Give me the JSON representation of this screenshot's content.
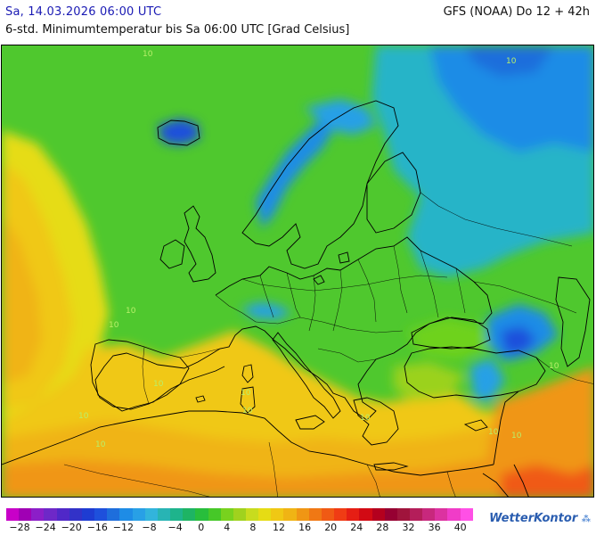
{
  "header": {
    "valid_time": "Sa, 14.03.2026 06:00 UTC",
    "model_run": "GFS (NOAA) Do 12 + 42h",
    "parameter": "6-std. Minimumtemperatur bis Sa 06:00 UTC [Grad Celsius]"
  },
  "map": {
    "region": "Europe / North Africa / Middle East",
    "contour_labels": [
      "10",
      "10",
      "10",
      "10",
      "10",
      "10",
      "10",
      "10",
      "10",
      "10",
      "10",
      "10",
      "10"
    ]
  },
  "legend": {
    "tick_labels": [
      "−28",
      "−24",
      "−20",
      "−16",
      "−12",
      "−8",
      "−4",
      "0",
      "4",
      "8",
      "12",
      "16",
      "20",
      "24",
      "28",
      "32",
      "36",
      "40"
    ],
    "colors": [
      "#c800c8",
      "#a000b4",
      "#8c1ec8",
      "#6e28c8",
      "#5028c8",
      "#3232c8",
      "#1e3cd2",
      "#1e50dc",
      "#1e6edc",
      "#1e8ce6",
      "#28a0e6",
      "#32b4dc",
      "#28b4b4",
      "#1eb48c",
      "#1eb464",
      "#28be3c",
      "#46c828",
      "#78d21e",
      "#a0d21e",
      "#c8dc1e",
      "#e6dc14",
      "#f0c814",
      "#f0b414",
      "#f09614",
      "#f07814",
      "#f05a14",
      "#f03c14",
      "#e61e14",
      "#d20a14",
      "#b4001e",
      "#960032",
      "#a0143c",
      "#b41e5a",
      "#c8287d",
      "#dc32a0",
      "#f03cc8",
      "#ff50e6"
    ]
  },
  "brand": {
    "name": "WetterKontor"
  }
}
